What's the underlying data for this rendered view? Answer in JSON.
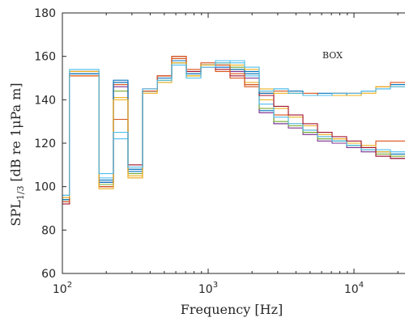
{
  "chart_data": {
    "type": "line",
    "subtype": "stairs",
    "x_scale": "log",
    "xlabel": "Frequency [Hz]",
    "ylabel": "SPL",
    "ylabel_sub": "1/3",
    "ylabel_tail": "[dB re 1μPa m]",
    "annotation": "BOX",
    "xlim": [
      100,
      20000
    ],
    "ylim": [
      60,
      180
    ],
    "x_ticks": [
      {
        "value": 100,
        "base": "10",
        "exp": "2"
      },
      {
        "value": 1000,
        "base": "10",
        "exp": "3"
      },
      {
        "value": 10000,
        "base": "10",
        "exp": "4"
      }
    ],
    "y_ticks": [
      "60",
      "80",
      "100",
      "120",
      "140",
      "160",
      "180"
    ],
    "band_edges": [
      89,
      112,
      178,
      224,
      282,
      355,
      447,
      562,
      708,
      891,
      1122,
      1413,
      1778,
      2239,
      2818,
      3548,
      4467,
      5623,
      7079,
      8913,
      11220,
      14130,
      17780,
      22390
    ],
    "series": [
      {
        "color": "#0072bd",
        "values": [
          94,
          152,
          103,
          149,
          107,
          144,
          150,
          157,
          152,
          156,
          156,
          155,
          153,
          135,
          129,
          128,
          125,
          122,
          121,
          119,
          117,
          116,
          115
        ]
      },
      {
        "color": "#d95319",
        "values": [
          93,
          152,
          101,
          147,
          109,
          145,
          151,
          159,
          153,
          155,
          153,
          150,
          146,
          143,
          133,
          129,
          126,
          123,
          122,
          120,
          118,
          121,
          121
        ]
      },
      {
        "color": "#edb120",
        "values": [
          95,
          151,
          101,
          141,
          105,
          144,
          149,
          158,
          151,
          156,
          157,
          154,
          148,
          140,
          136,
          132,
          128,
          124,
          122,
          120,
          119,
          116,
          114
        ]
      },
      {
        "color": "#7e2f8e",
        "values": [
          96,
          152,
          102,
          146,
          108,
          144,
          150,
          158,
          152,
          155,
          155,
          153,
          150,
          134,
          129,
          127,
          124,
          121,
          120,
          118,
          116,
          114,
          113
        ]
      },
      {
        "color": "#77ac30",
        "values": [
          94,
          153,
          101,
          144,
          106,
          144,
          149,
          157,
          151,
          156,
          156,
          155,
          152,
          136,
          130,
          128,
          125,
          122,
          121,
          119,
          117,
          115,
          114
        ]
      },
      {
        "color": "#4dbeee",
        "values": [
          95,
          152,
          104,
          122,
          108,
          144,
          148,
          157,
          150,
          156,
          158,
          157,
          151,
          138,
          132,
          129,
          126,
          123,
          121,
          119,
          117,
          117,
          116
        ]
      },
      {
        "color": "#a2142f",
        "values": [
          92,
          153,
          100,
          148,
          110,
          145,
          151,
          160,
          153,
          156,
          154,
          151,
          147,
          142,
          137,
          133,
          129,
          125,
          123,
          121,
          118,
          114,
          113
        ]
      },
      {
        "color": "#0072bd",
        "values": [
          94,
          152,
          102,
          148,
          108,
          144,
          150,
          158,
          152,
          156,
          155,
          154,
          152,
          143,
          145,
          144,
          142,
          143,
          143,
          142,
          144,
          145,
          147
        ]
      },
      {
        "color": "#d95319",
        "values": [
          93,
          151,
          100,
          131,
          104,
          144,
          151,
          160,
          154,
          157,
          156,
          152,
          147,
          144,
          144,
          143,
          143,
          142,
          143,
          143,
          144,
          146,
          148
        ]
      },
      {
        "color": "#edb120",
        "values": [
          95,
          153,
          99,
          140,
          104,
          143,
          148,
          157,
          151,
          156,
          157,
          156,
          154,
          145,
          143,
          143,
          142,
          142,
          142,
          142,
          143,
          146,
          146
        ]
      },
      {
        "color": "#4dbeee",
        "values": [
          96,
          154,
          106,
          125,
          109,
          145,
          149,
          156,
          150,
          155,
          157,
          158,
          155,
          144,
          145,
          143,
          142,
          142,
          143,
          143,
          144,
          145,
          146
        ]
      }
    ]
  }
}
